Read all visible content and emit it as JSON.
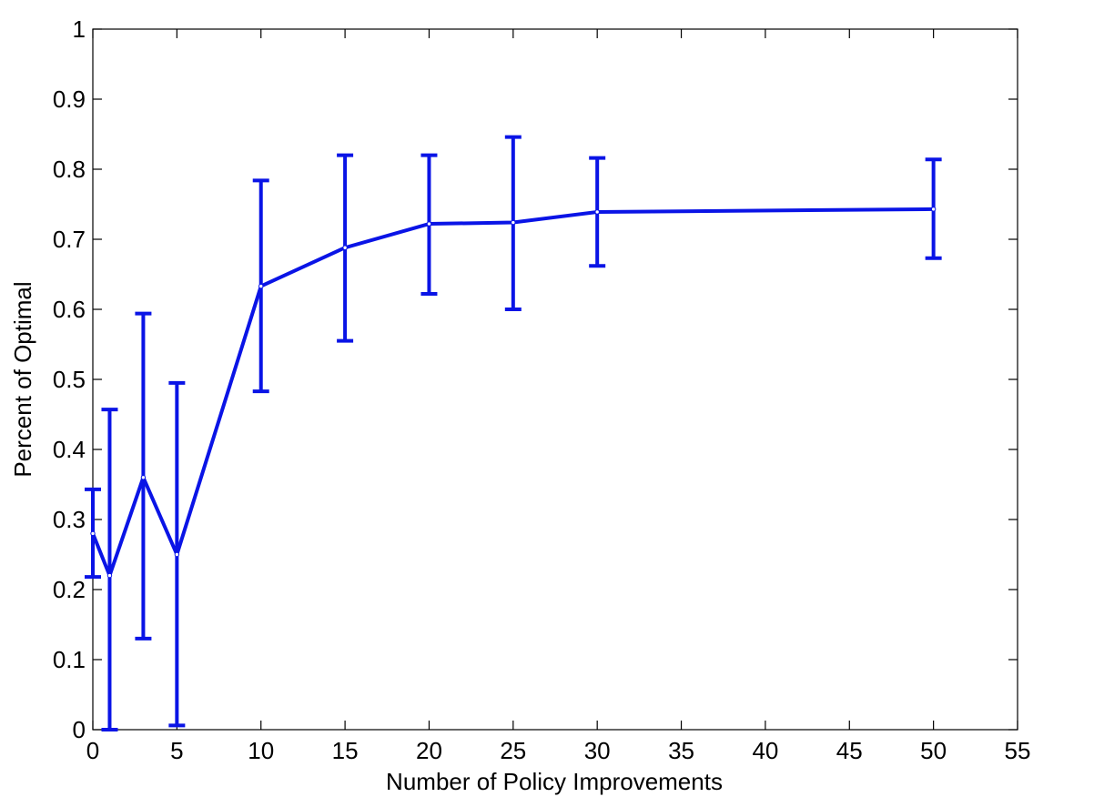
{
  "chart_data": {
    "type": "line",
    "title": "",
    "xlabel": "Number of Policy Improvements",
    "ylabel": "Percent of Optimal",
    "xlim": [
      0,
      55
    ],
    "ylim": [
      0,
      1
    ],
    "xticks": [
      "0",
      "5",
      "10",
      "15",
      "20",
      "25",
      "30",
      "35",
      "40",
      "45",
      "50",
      "55"
    ],
    "yticks": [
      "0",
      "0.1",
      "0.2",
      "0.3",
      "0.4",
      "0.5",
      "0.6",
      "0.7",
      "0.8",
      "0.9",
      "1"
    ],
    "grid": false,
    "series": [
      {
        "color": "#0a14e6",
        "x": [
          0,
          1,
          3,
          5,
          10,
          15,
          20,
          25,
          30,
          50
        ],
        "y": [
          0.28,
          0.22,
          0.36,
          0.25,
          0.633,
          0.688,
          0.722,
          0.724,
          0.739,
          0.743
        ],
        "error_low": [
          0.218,
          0.0,
          0.13,
          0.006,
          0.483,
          0.555,
          0.622,
          0.6,
          0.662,
          0.673
        ],
        "error_high": [
          0.343,
          0.457,
          0.594,
          0.495,
          0.784,
          0.82,
          0.82,
          0.846,
          0.816,
          0.814
        ]
      }
    ]
  }
}
